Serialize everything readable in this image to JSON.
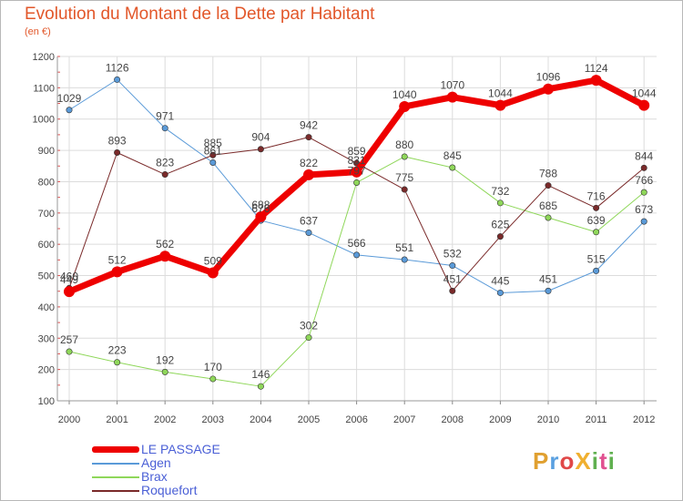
{
  "title": "Evolution du Montant de la Dette par Habitant",
  "subtitle": "(en €)",
  "logo": {
    "text": "ProXiti",
    "letters": [
      "P",
      "r",
      "o",
      "X",
      "i",
      "t",
      "i"
    ],
    "colors": [
      "#e0a030",
      "#5aa0e0",
      "#e04848",
      "#f0b030",
      "#60b050",
      "#e05090",
      "#60b050"
    ]
  },
  "chart_data": {
    "type": "line",
    "title": "Evolution du Montant de la Dette par Habitant",
    "subtitle": "(en €)",
    "categories": [
      "2000",
      "2001",
      "2002",
      "2003",
      "2004",
      "2005",
      "2006",
      "2007",
      "2008",
      "2009",
      "2010",
      "2011",
      "2012"
    ],
    "ylim": [
      100,
      1200
    ],
    "yticks": [
      100,
      200,
      300,
      400,
      500,
      600,
      700,
      800,
      900,
      1000,
      1100,
      1200
    ],
    "grid": true,
    "legend_position": "bottom-left",
    "series": [
      {
        "name": "LE PASSAGE",
        "color": "#ee0000",
        "width": 7,
        "values": [
          449,
          512,
          562,
          509,
          688,
          822,
          831,
          1040,
          1070,
          1044,
          1096,
          1124,
          1044
        ],
        "labels": [
          "449",
          "512",
          "562",
          "509",
          "688",
          "822",
          "831",
          "1040",
          "1070",
          "1044",
          "1096",
          "1124",
          "1044"
        ]
      },
      {
        "name": "Agen",
        "color": "#5a9ad8",
        "width": 1,
        "values": [
          1029,
          1126,
          971,
          861,
          676,
          637,
          566,
          551,
          532,
          445,
          451,
          515,
          673
        ],
        "labels": [
          "1029",
          "1126",
          "971",
          "861",
          "676",
          "637",
          "566",
          "551",
          "532",
          "445",
          "451",
          "515",
          "673"
        ]
      },
      {
        "name": "Brax",
        "color": "#8fd75a",
        "width": 1,
        "values": [
          257,
          223,
          192,
          170,
          146,
          302,
          797,
          880,
          845,
          732,
          685,
          639,
          766
        ],
        "labels": [
          "257",
          "223",
          "192",
          "170",
          "146",
          "302",
          "797",
          "880",
          "845",
          "732",
          "685",
          "639",
          "766"
        ]
      },
      {
        "name": "Roquefort",
        "color": "#7a2a2a",
        "width": 1,
        "values": [
          460,
          893,
          823,
          885,
          904,
          942,
          859,
          775,
          451,
          625,
          788,
          716,
          844
        ],
        "labels": [
          "460",
          "893",
          "823",
          "885",
          "904",
          "942",
          "859",
          "775",
          "451",
          "625",
          "788",
          "716",
          "844"
        ]
      }
    ]
  }
}
